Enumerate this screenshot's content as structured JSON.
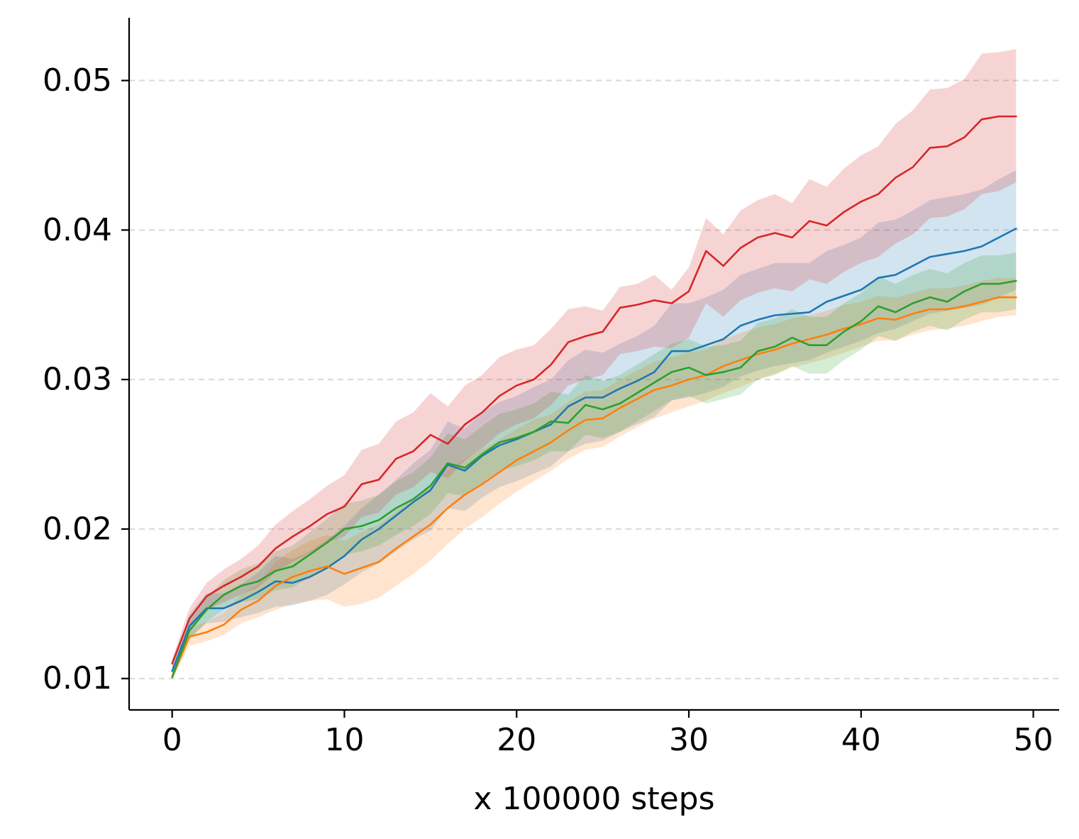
{
  "chart_data": {
    "type": "line",
    "title": "",
    "xlabel": "x 100000 steps",
    "ylabel": "",
    "xlim": [
      -2.5,
      51.5
    ],
    "ylim": [
      0.0079,
      0.0542
    ],
    "xticks": [
      0,
      10,
      20,
      30,
      40,
      50
    ],
    "xtick_labels": [
      "0",
      "10",
      "20",
      "30",
      "40",
      "50"
    ],
    "yticks": [
      0.01,
      0.02,
      0.03,
      0.04,
      0.05
    ],
    "ytick_labels": [
      "0.01",
      "0.02",
      "0.03",
      "0.04",
      "0.05"
    ],
    "grid": "y-dashed",
    "legend": "none",
    "x": [
      0,
      1,
      2,
      3,
      4,
      5,
      6,
      7,
      8,
      9,
      10,
      11,
      12,
      13,
      14,
      15,
      16,
      17,
      18,
      19,
      20,
      21,
      22,
      23,
      24,
      25,
      26,
      27,
      28,
      29,
      30,
      31,
      32,
      33,
      34,
      35,
      36,
      37,
      38,
      39,
      40,
      41,
      42,
      43,
      44,
      45,
      46,
      47,
      48,
      49
    ],
    "series": [
      {
        "name": "blue",
        "color": "#1f77b4",
        "values": [
          0.0105,
          0.0135,
          0.0147,
          0.0147,
          0.0152,
          0.0158,
          0.0165,
          0.0164,
          0.0168,
          0.0174,
          0.0182,
          0.0193,
          0.02,
          0.0209,
          0.0218,
          0.0226,
          0.0243,
          0.0239,
          0.0249,
          0.0256,
          0.026,
          0.0265,
          0.027,
          0.0282,
          0.0288,
          0.0288,
          0.0294,
          0.0299,
          0.0305,
          0.0319,
          0.0319,
          0.0323,
          0.0327,
          0.0336,
          0.034,
          0.0343,
          0.0344,
          0.0345,
          0.0352,
          0.0356,
          0.036,
          0.0368,
          0.037,
          0.0376,
          0.0382,
          0.0384,
          0.0386,
          0.0389,
          0.0395,
          0.0401
        ],
        "lower": [
          0.0102,
          0.0127,
          0.0137,
          0.0138,
          0.0141,
          0.0144,
          0.0148,
          0.0149,
          0.0152,
          0.0156,
          0.0163,
          0.0171,
          0.0177,
          0.0185,
          0.0193,
          0.0199,
          0.0214,
          0.0212,
          0.0221,
          0.0228,
          0.0232,
          0.0237,
          0.0242,
          0.0252,
          0.0257,
          0.0259,
          0.0265,
          0.027,
          0.0275,
          0.0286,
          0.0288,
          0.0291,
          0.0295,
          0.0302,
          0.0306,
          0.0309,
          0.0311,
          0.0313,
          0.0318,
          0.0322,
          0.0326,
          0.0331,
          0.0334,
          0.0339,
          0.0344,
          0.0346,
          0.0348,
          0.035,
          0.0355,
          0.036
        ],
        "upper": [
          0.0108,
          0.0143,
          0.0157,
          0.0157,
          0.0163,
          0.0171,
          0.0182,
          0.018,
          0.0185,
          0.0193,
          0.0202,
          0.0214,
          0.0223,
          0.0233,
          0.0244,
          0.0253,
          0.0272,
          0.0267,
          0.0278,
          0.0285,
          0.0289,
          0.0295,
          0.03,
          0.0313,
          0.032,
          0.0318,
          0.0324,
          0.0329,
          0.0336,
          0.0351,
          0.0351,
          0.0355,
          0.036,
          0.037,
          0.0374,
          0.0378,
          0.0378,
          0.0378,
          0.0386,
          0.039,
          0.0395,
          0.0405,
          0.0407,
          0.0413,
          0.042,
          0.0422,
          0.0424,
          0.0427,
          0.0434,
          0.044
        ]
      },
      {
        "name": "orange",
        "color": "#ff7f0e",
        "values": [
          0.0101,
          0.0128,
          0.0131,
          0.0136,
          0.0146,
          0.0152,
          0.0162,
          0.0168,
          0.0172,
          0.0175,
          0.017,
          0.0174,
          0.0178,
          0.0187,
          0.0195,
          0.0203,
          0.0214,
          0.0223,
          0.023,
          0.0238,
          0.0246,
          0.0252,
          0.0258,
          0.0266,
          0.0273,
          0.0274,
          0.0281,
          0.0287,
          0.0293,
          0.0296,
          0.03,
          0.0303,
          0.0309,
          0.0313,
          0.0317,
          0.032,
          0.0324,
          0.0327,
          0.033,
          0.0334,
          0.0337,
          0.0341,
          0.034,
          0.0344,
          0.0347,
          0.0347,
          0.0349,
          0.0352,
          0.0355,
          0.0355
        ],
        "lower": [
          0.0099,
          0.0122,
          0.0125,
          0.0129,
          0.0137,
          0.0141,
          0.0146,
          0.015,
          0.0152,
          0.0153,
          0.0148,
          0.015,
          0.0154,
          0.0162,
          0.017,
          0.0179,
          0.019,
          0.02,
          0.0208,
          0.0217,
          0.0225,
          0.0232,
          0.0239,
          0.0247,
          0.0253,
          0.0255,
          0.0262,
          0.0268,
          0.0274,
          0.0278,
          0.0282,
          0.0286,
          0.0291,
          0.0295,
          0.03,
          0.0304,
          0.0308,
          0.0311,
          0.0314,
          0.0318,
          0.0322,
          0.0326,
          0.0326,
          0.033,
          0.0333,
          0.0334,
          0.0336,
          0.0339,
          0.0342,
          0.0343
        ],
        "upper": [
          0.0103,
          0.0134,
          0.0138,
          0.0144,
          0.0156,
          0.0163,
          0.0178,
          0.0186,
          0.0192,
          0.0196,
          0.0192,
          0.0198,
          0.0203,
          0.0212,
          0.022,
          0.0228,
          0.0239,
          0.0247,
          0.0253,
          0.026,
          0.0267,
          0.0273,
          0.0277,
          0.0285,
          0.0292,
          0.0293,
          0.03,
          0.0306,
          0.0312,
          0.0315,
          0.0318,
          0.032,
          0.0327,
          0.0331,
          0.0335,
          0.0337,
          0.0341,
          0.0343,
          0.0346,
          0.035,
          0.0352,
          0.0356,
          0.0355,
          0.0358,
          0.0361,
          0.0361,
          0.0363,
          0.0366,
          0.0368,
          0.0368
        ]
      },
      {
        "name": "green",
        "color": "#2ca02c",
        "values": [
          0.0101,
          0.0132,
          0.0146,
          0.0156,
          0.0162,
          0.0165,
          0.0172,
          0.0175,
          0.0183,
          0.0191,
          0.02,
          0.0202,
          0.0206,
          0.0214,
          0.022,
          0.0229,
          0.0244,
          0.0241,
          0.025,
          0.0258,
          0.0261,
          0.0265,
          0.0272,
          0.0271,
          0.0283,
          0.028,
          0.0284,
          0.0291,
          0.0298,
          0.0305,
          0.0308,
          0.0303,
          0.0305,
          0.0308,
          0.0319,
          0.0322,
          0.0328,
          0.0323,
          0.0323,
          0.0332,
          0.0339,
          0.0349,
          0.0345,
          0.0351,
          0.0355,
          0.0352,
          0.0359,
          0.0364,
          0.0364,
          0.0366
        ],
        "lower": [
          0.0099,
          0.0126,
          0.0138,
          0.0146,
          0.0151,
          0.0153,
          0.0159,
          0.0161,
          0.0168,
          0.0175,
          0.0183,
          0.0185,
          0.0189,
          0.0196,
          0.0202,
          0.021,
          0.0224,
          0.0222,
          0.0231,
          0.0239,
          0.0242,
          0.0246,
          0.0252,
          0.0252,
          0.0263,
          0.0261,
          0.0265,
          0.0272,
          0.0279,
          0.0286,
          0.0289,
          0.0284,
          0.0287,
          0.029,
          0.03,
          0.0303,
          0.0309,
          0.0304,
          0.0304,
          0.0313,
          0.032,
          0.0329,
          0.0326,
          0.0332,
          0.0336,
          0.0333,
          0.034,
          0.0345,
          0.0345,
          0.0347
        ],
        "upper": [
          0.0103,
          0.0138,
          0.0154,
          0.0166,
          0.0173,
          0.0177,
          0.0185,
          0.0189,
          0.0198,
          0.0207,
          0.0217,
          0.0219,
          0.0223,
          0.0232,
          0.0238,
          0.0248,
          0.0264,
          0.026,
          0.0269,
          0.0277,
          0.028,
          0.0284,
          0.0292,
          0.029,
          0.0303,
          0.0299,
          0.0303,
          0.031,
          0.0317,
          0.0324,
          0.0327,
          0.0322,
          0.0323,
          0.0326,
          0.0338,
          0.0341,
          0.0347,
          0.0342,
          0.0342,
          0.0351,
          0.0358,
          0.0369,
          0.0364,
          0.037,
          0.0374,
          0.0371,
          0.0378,
          0.0383,
          0.0383,
          0.0385
        ]
      },
      {
        "name": "red",
        "color": "#d62728",
        "values": [
          0.011,
          0.014,
          0.0155,
          0.0162,
          0.0168,
          0.0175,
          0.0187,
          0.0195,
          0.0202,
          0.021,
          0.0215,
          0.023,
          0.0233,
          0.0247,
          0.0252,
          0.0263,
          0.0257,
          0.027,
          0.0278,
          0.0289,
          0.0296,
          0.03,
          0.031,
          0.0325,
          0.0329,
          0.0332,
          0.0348,
          0.035,
          0.0353,
          0.0351,
          0.0359,
          0.0386,
          0.0376,
          0.0388,
          0.0395,
          0.0398,
          0.0395,
          0.0406,
          0.0403,
          0.0412,
          0.0419,
          0.0424,
          0.0435,
          0.0442,
          0.0455,
          0.0456,
          0.0462,
          0.0474,
          0.0476,
          0.0476
        ],
        "lower": [
          0.0107,
          0.0133,
          0.0146,
          0.0151,
          0.0156,
          0.0161,
          0.0171,
          0.0178,
          0.0184,
          0.0191,
          0.0195,
          0.0208,
          0.0211,
          0.0223,
          0.0228,
          0.0238,
          0.0234,
          0.0246,
          0.0254,
          0.0264,
          0.027,
          0.0274,
          0.0283,
          0.0296,
          0.03,
          0.0303,
          0.0317,
          0.0319,
          0.0322,
          0.0321,
          0.0328,
          0.0351,
          0.0342,
          0.0353,
          0.0358,
          0.0361,
          0.0359,
          0.0367,
          0.0364,
          0.0372,
          0.0378,
          0.0382,
          0.0391,
          0.0397,
          0.0408,
          0.0409,
          0.0414,
          0.0424,
          0.0426,
          0.0432
        ],
        "upper": [
          0.0113,
          0.0147,
          0.0164,
          0.0173,
          0.018,
          0.0189,
          0.0203,
          0.0212,
          0.022,
          0.0229,
          0.0236,
          0.0253,
          0.0257,
          0.0272,
          0.0278,
          0.0291,
          0.0282,
          0.0296,
          0.0303,
          0.0315,
          0.032,
          0.0323,
          0.0334,
          0.0347,
          0.0349,
          0.0346,
          0.0362,
          0.0364,
          0.037,
          0.036,
          0.0375,
          0.0408,
          0.0397,
          0.0413,
          0.042,
          0.0424,
          0.0418,
          0.0434,
          0.0429,
          0.0441,
          0.045,
          0.0456,
          0.0471,
          0.048,
          0.0494,
          0.0495,
          0.0501,
          0.0518,
          0.0519,
          0.0521
        ]
      }
    ]
  }
}
